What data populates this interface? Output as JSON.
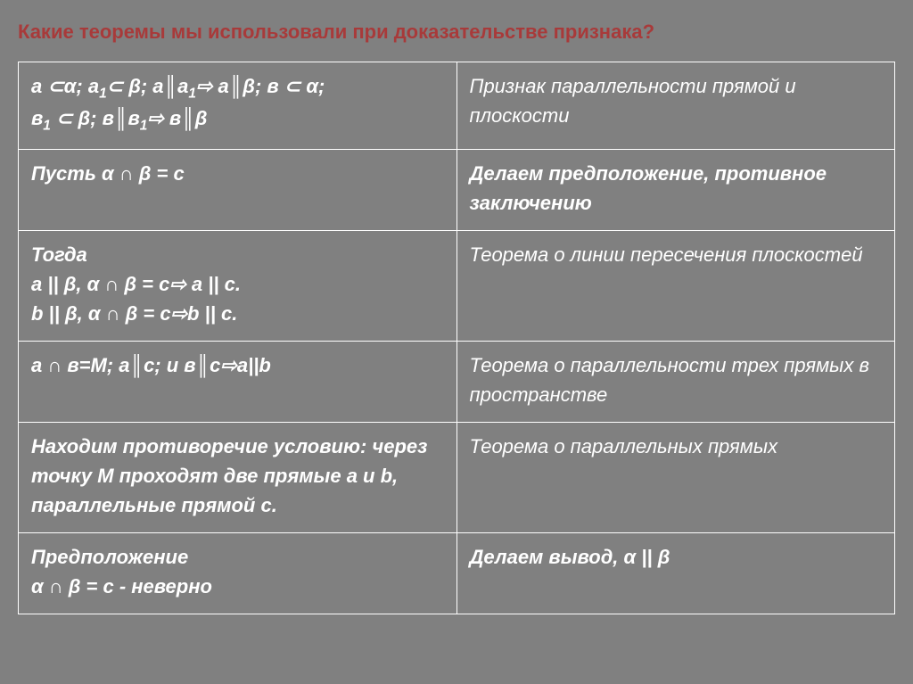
{
  "title": "Какие теоремы мы использовали при доказательстве признака?",
  "rows": [
    {
      "left": "а ⊂α; а₁⊂ β; a║а₁⇨ a║β; в ⊂ α;\nв₁ ⊂ β; в║в₁⇨ в║β",
      "right": "Признак параллельности прямой и плоскости"
    },
    {
      "left": "Пусть  α ∩ β = с",
      "right": "Делаем предположение, противное заключению",
      "rightBold": true
    },
    {
      "left": "Тогда\nа || β, α ∩ β = с⇨ а || с.\nb || β,  α ∩ β = с⇨b || с.",
      "right": "Теорема о линии пересечения плоскостей"
    },
    {
      "left": "а ∩ в=М; а║с; и в║с⇨а||b",
      "right": "Теорема о параллельности трех прямых в пространстве"
    },
    {
      "left": "Находим противоречие условию: через  точку  М  проходят две прямые а и b, параллельные прямой с.",
      "right": "Теорема о параллельных прямых"
    },
    {
      "left": "Предположение\nα ∩ β = с - неверно",
      "right": "Делаем вывод, α || β",
      "rightBold": true
    }
  ],
  "colors": {
    "background": "#808080",
    "title": "#a83a3a",
    "border": "#ffffff",
    "text": "#ffffff"
  },
  "typography": {
    "title_fontsize": 22,
    "cell_fontsize": 22,
    "font_family": "Arial"
  }
}
